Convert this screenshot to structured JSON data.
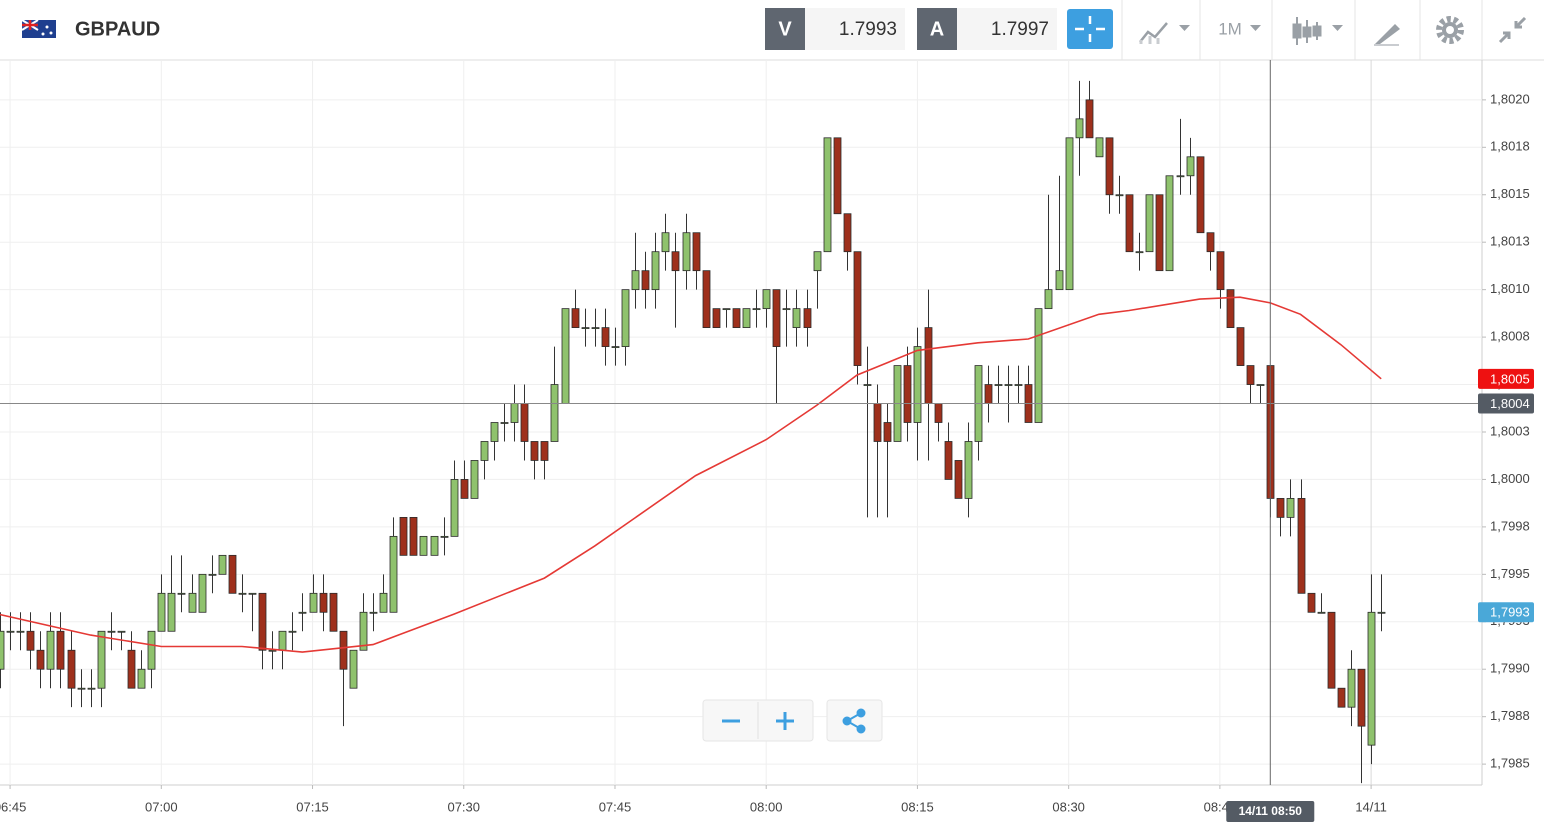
{
  "header": {
    "symbol": "GBPAUD",
    "bid_label": "V",
    "bid": 1.7993,
    "ask_label": "A",
    "ask": 1.7997,
    "timeframe": "1M"
  },
  "chart_data": {
    "type": "candlestick",
    "x": [
      "06:44",
      "06:45",
      "06:46",
      "06:47",
      "06:48",
      "06:49",
      "06:50",
      "06:51",
      "06:52",
      "06:53",
      "06:54",
      "06:55",
      "06:56",
      "06:57",
      "06:58",
      "06:59",
      "07:00",
      "07:01",
      "07:02",
      "07:03",
      "07:04",
      "07:05",
      "07:06",
      "07:07",
      "07:08",
      "07:09",
      "07:10",
      "07:11",
      "07:12",
      "07:13",
      "07:14",
      "07:15",
      "07:16",
      "07:17",
      "07:18",
      "07:19",
      "07:20",
      "07:21",
      "07:22",
      "07:23",
      "07:24",
      "07:25",
      "07:26",
      "07:27",
      "07:28",
      "07:29",
      "07:30",
      "07:31",
      "07:32",
      "07:33",
      "07:34",
      "07:35",
      "07:36",
      "07:37",
      "07:38",
      "07:39",
      "07:40",
      "07:41",
      "07:42",
      "07:43",
      "07:44",
      "07:45",
      "07:46",
      "07:47",
      "07:48",
      "07:49",
      "07:50",
      "07:51",
      "07:52",
      "07:53",
      "07:54",
      "07:55",
      "07:56",
      "07:57",
      "07:58",
      "07:59",
      "08:00",
      "08:01",
      "08:02",
      "08:03",
      "08:04",
      "08:05",
      "08:06",
      "08:07",
      "08:08",
      "08:09",
      "08:10",
      "08:11",
      "08:12",
      "08:13",
      "08:14",
      "08:15",
      "08:16",
      "08:17",
      "08:18",
      "08:19",
      "08:20",
      "08:21",
      "08:22",
      "08:23",
      "08:24",
      "08:25",
      "08:26",
      "08:27",
      "08:28",
      "08:29",
      "08:30",
      "08:31",
      "08:32",
      "08:33",
      "08:34",
      "08:35",
      "08:36",
      "08:37",
      "08:38",
      "08:39",
      "08:40",
      "08:41",
      "08:42",
      "08:43",
      "08:44",
      "08:45",
      "08:46",
      "08:47",
      "08:48",
      "08:49",
      "08:50",
      "08:51",
      "08:52",
      "08:53",
      "08:54",
      "08:55",
      "08:56",
      "08:57",
      "08:58",
      "08:59",
      "09:00",
      "09:01"
    ],
    "open": [
      1.799,
      1.7992,
      1.7992,
      1.7992,
      1.7991,
      1.799,
      1.7992,
      1.7991,
      1.7989,
      1.7989,
      1.7989,
      1.7992,
      1.7992,
      1.7991,
      1.7989,
      1.799,
      1.7992,
      1.7992,
      1.7994,
      1.7993,
      1.7993,
      1.7995,
      1.7995,
      1.7996,
      1.7994,
      1.7994,
      1.7994,
      1.7991,
      1.7991,
      1.7992,
      1.7993,
      1.7993,
      1.7994,
      1.7994,
      1.7992,
      1.7989,
      1.7991,
      1.7993,
      1.7993,
      1.7993,
      1.7998,
      1.7998,
      1.7996,
      1.7996,
      1.7997,
      1.7997,
      1.8,
      1.7999,
      1.8001,
      1.8002,
      1.8003,
      1.8003,
      1.8004,
      1.8002,
      1.8002,
      1.8002,
      1.8004,
      1.8009,
      1.8008,
      1.8008,
      1.8008,
      1.8007,
      1.8007,
      1.801,
      1.8011,
      1.801,
      1.8012,
      1.8012,
      1.8011,
      1.8013,
      1.8011,
      1.8009,
      1.8009,
      1.8009,
      1.8008,
      1.8009,
      1.8009,
      1.801,
      1.8009,
      1.8008,
      1.8009,
      1.8011,
      1.8012,
      1.8018,
      1.8014,
      1.8012,
      1.8005,
      1.8004,
      1.8003,
      1.8002,
      1.8006,
      1.8003,
      1.8008,
      1.8004,
      1.8002,
      1.8001,
      1.7999,
      1.8002,
      1.8005,
      1.8005,
      1.8005,
      1.8005,
      1.8005,
      1.8003,
      1.8009,
      1.801,
      1.801,
      1.8018,
      1.802,
      1.8017,
      1.8018,
      1.8015,
      1.8015,
      1.8012,
      1.8012,
      1.8015,
      1.8011,
      1.8016,
      1.8016,
      1.8017,
      1.8013,
      1.8012,
      1.801,
      1.8008,
      1.8006,
      1.8005,
      1.8006,
      1.7999,
      1.7998,
      1.7999,
      1.7994,
      1.7993,
      1.7993,
      1.7989,
      1.7988,
      1.799,
      1.7986,
      1.7993
    ],
    "high": [
      1.7993,
      1.7993,
      1.7993,
      1.7993,
      1.7992,
      1.7993,
      1.7993,
      1.7992,
      1.799,
      1.799,
      1.7992,
      1.7993,
      1.7992,
      1.7992,
      1.7991,
      1.7992,
      1.7995,
      1.7996,
      1.7996,
      1.7995,
      1.7995,
      1.7996,
      1.7996,
      1.7996,
      1.7995,
      1.7994,
      1.7994,
      1.7992,
      1.7992,
      1.7993,
      1.7994,
      1.7995,
      1.7995,
      1.7994,
      1.7992,
      1.7991,
      1.7994,
      1.7994,
      1.7995,
      1.7998,
      1.7998,
      1.7998,
      1.7997,
      1.7997,
      1.7998,
      1.8001,
      1.8001,
      1.8001,
      1.8002,
      1.8003,
      1.8004,
      1.8005,
      1.8005,
      1.8002,
      1.8002,
      1.8007,
      1.8009,
      1.801,
      1.8009,
      1.8009,
      1.8009,
      1.8008,
      1.801,
      1.8013,
      1.8012,
      1.8013,
      1.8014,
      1.8013,
      1.8014,
      1.8013,
      1.8011,
      1.8009,
      1.8009,
      1.8009,
      1.8009,
      1.801,
      1.801,
      1.801,
      1.801,
      1.801,
      1.801,
      1.8012,
      1.8018,
      1.8018,
      1.8014,
      1.8012,
      1.8007,
      1.8005,
      1.8004,
      1.8006,
      1.8007,
      1.8008,
      1.801,
      1.8004,
      1.8003,
      1.8001,
      1.8003,
      1.8006,
      1.8006,
      1.8006,
      1.8006,
      1.8006,
      1.8006,
      1.8009,
      1.8015,
      1.8016,
      1.8018,
      1.8021,
      1.8021,
      1.8018,
      1.8018,
      1.8016,
      1.8015,
      1.8013,
      1.8015,
      1.8015,
      1.8016,
      1.8019,
      1.8018,
      1.8017,
      1.8013,
      1.8012,
      1.801,
      1.8008,
      1.8006,
      1.8005,
      1.8006,
      1.7999,
      1.8,
      1.8,
      1.7994,
      1.7994,
      1.7993,
      1.7989,
      1.7991,
      1.799,
      1.7995,
      1.7995
    ],
    "low": [
      1.7989,
      1.7991,
      1.7991,
      1.799,
      1.7989,
      1.7989,
      1.7989,
      1.7988,
      1.7988,
      1.7988,
      1.7988,
      1.7991,
      1.7991,
      1.7989,
      1.7989,
      1.7989,
      1.7992,
      1.7992,
      1.7993,
      1.7993,
      1.7993,
      1.7994,
      1.7995,
      1.7994,
      1.7993,
      1.7992,
      1.799,
      1.799,
      1.799,
      1.7991,
      1.7992,
      1.7993,
      1.7992,
      1.7992,
      1.7987,
      1.7989,
      1.7991,
      1.7992,
      1.7993,
      1.7993,
      1.7996,
      1.7996,
      1.7996,
      1.7996,
      1.7996,
      1.7997,
      1.7999,
      1.7999,
      1.8,
      1.8001,
      1.8002,
      1.8002,
      1.8001,
      1.8,
      1.8,
      1.8002,
      1.8004,
      1.8008,
      1.8007,
      1.8007,
      1.8006,
      1.8006,
      1.8006,
      1.8009,
      1.8009,
      1.8009,
      1.8011,
      1.8008,
      1.801,
      1.801,
      1.8008,
      1.8008,
      1.8008,
      1.8008,
      1.8008,
      1.8008,
      1.8008,
      1.8004,
      1.8007,
      1.8007,
      1.8007,
      1.8009,
      1.8012,
      1.8014,
      1.8011,
      1.8005,
      1.7998,
      1.7998,
      1.7998,
      1.8002,
      1.8002,
      1.8001,
      1.8001,
      1.8002,
      1.8,
      1.7999,
      1.7998,
      1.8001,
      1.8003,
      1.8004,
      1.8003,
      1.8004,
      1.8003,
      1.8003,
      1.8009,
      1.801,
      1.801,
      1.8016,
      1.8018,
      1.8017,
      1.8014,
      1.8014,
      1.8012,
      1.8011,
      1.8012,
      1.8011,
      1.8011,
      1.8015,
      1.8015,
      1.8013,
      1.8011,
      1.8009,
      1.8008,
      1.8006,
      1.8004,
      1.8004,
      1.7998,
      1.7997,
      1.7997,
      1.7994,
      1.7993,
      1.7993,
      1.7989,
      1.7988,
      1.7987,
      1.7984,
      1.7985,
      1.7992
    ],
    "close": [
      1.7992,
      1.7992,
      1.7992,
      1.7991,
      1.799,
      1.7992,
      1.799,
      1.7989,
      1.7989,
      1.7989,
      1.7992,
      1.7992,
      1.7992,
      1.7989,
      1.799,
      1.7992,
      1.7994,
      1.7994,
      1.7994,
      1.7994,
      1.7995,
      1.7995,
      1.7996,
      1.7994,
      1.7994,
      1.7994,
      1.7991,
      1.7991,
      1.7992,
      1.7992,
      1.7993,
      1.7994,
      1.7993,
      1.7992,
      1.799,
      1.7991,
      1.7993,
      1.7993,
      1.7994,
      1.7997,
      1.7996,
      1.7996,
      1.7997,
      1.7997,
      1.7997,
      1.8,
      1.7999,
      1.8001,
      1.8002,
      1.8003,
      1.8003,
      1.8004,
      1.8002,
      1.8001,
      1.8001,
      1.8005,
      1.8009,
      1.8008,
      1.8008,
      1.8008,
      1.8007,
      1.8007,
      1.801,
      1.8011,
      1.801,
      1.8012,
      1.8013,
      1.8011,
      1.8013,
      1.8011,
      1.8008,
      1.8008,
      1.8009,
      1.8008,
      1.8009,
      1.8009,
      1.801,
      1.8007,
      1.8009,
      1.8009,
      1.8008,
      1.8012,
      1.8018,
      1.8014,
      1.8012,
      1.8006,
      1.8005,
      1.8002,
      1.8002,
      1.8006,
      1.8003,
      1.8007,
      1.8004,
      1.8003,
      1.8,
      1.7999,
      1.8002,
      1.8006,
      1.8004,
      1.8005,
      1.8005,
      1.8005,
      1.8003,
      1.8009,
      1.801,
      1.8011,
      1.8018,
      1.8019,
      1.8018,
      1.8018,
      1.8015,
      1.8015,
      1.8012,
      1.8012,
      1.8015,
      1.8011,
      1.8016,
      1.8016,
      1.8017,
      1.8013,
      1.8012,
      1.801,
      1.8008,
      1.8006,
      1.8005,
      1.8005,
      1.7999,
      1.7998,
      1.7999,
      1.7994,
      1.7993,
      1.7993,
      1.7989,
      1.7988,
      1.799,
      1.7987,
      1.7993,
      1.7993
    ],
    "up_color": "#8fc26d",
    "down_color": "#9e301c",
    "ma": {
      "color": "#e53935",
      "x": [
        "06:43",
        "06:53",
        "07:00",
        "07:08",
        "07:14",
        "07:21",
        "07:29",
        "07:38",
        "07:43",
        "07:53",
        "08:00",
        "08:05",
        "08:09",
        "08:15",
        "08:21",
        "08:26",
        "08:33",
        "08:36",
        "08:43",
        "08:47",
        "08:50",
        "08:53",
        "08:57",
        "09:01"
      ],
      "values": [
        1.7993,
        1.79918,
        1.79912,
        1.79912,
        1.79909,
        1.79913,
        1.79929,
        1.79948,
        1.79965,
        1.80002,
        1.80021,
        1.80039,
        1.80055,
        1.80068,
        1.80072,
        1.80074,
        1.80087,
        1.80089,
        1.80095,
        1.80096,
        1.80093,
        1.80087,
        1.80071,
        1.80053
      ]
    },
    "xlim": [
      "06:44",
      "09:11"
    ],
    "ylim": [
      1.79839,
      1.80221
    ],
    "xticks": [
      "06:45",
      "07:00",
      "07:15",
      "07:30",
      "07:45",
      "08:00",
      "08:15",
      "08:30",
      "08:45",
      {
        "value": "09:00",
        "label": "14/11"
      }
    ],
    "yticks": [
      {
        "value": 1.802,
        "label": "1,8020"
      },
      {
        "value": 1.80175,
        "label": "1,8018"
      },
      {
        "value": 1.8015,
        "label": "1,8015"
      },
      {
        "value": 1.80125,
        "label": "1,8013"
      },
      {
        "value": 1.801,
        "label": "1,8010"
      },
      {
        "value": 1.80075,
        "label": "1,8008"
      },
      {
        "value": 1.8005,
        "label": "1,8005"
      },
      {
        "value": 1.80025,
        "label": "1,8003"
      },
      {
        "value": 1.8,
        "label": "1,8000"
      },
      {
        "value": 1.79975,
        "label": "1,7998"
      },
      {
        "value": 1.7995,
        "label": "1,7995"
      },
      {
        "value": 1.79925,
        "label": "1,7993"
      },
      {
        "value": 1.799,
        "label": "1,7990"
      },
      {
        "value": 1.79875,
        "label": "1,7988"
      },
      {
        "value": 1.7985,
        "label": "1,7985"
      }
    ],
    "grid": true,
    "ma_price": {
      "value": 1.80053,
      "label": "1,8005"
    },
    "crosshair_y": {
      "value": 1.8004,
      "label": "1,8004"
    },
    "last_price": {
      "value": 1.7993,
      "label": "1,7993"
    },
    "crosshair_x": {
      "value": "08:50",
      "label": "14/11 08:50"
    }
  }
}
